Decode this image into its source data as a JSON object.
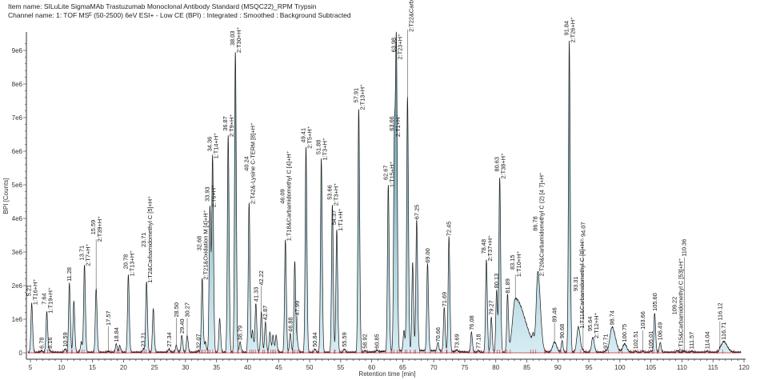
{
  "header": {
    "item_name": "Item name: SILuLite SigmaMAb Trastuzumab Monoclonal Antibody Standard (MSQC22)_RPM Trypsin",
    "channel_name": "Channel name: 1: TOF MSᴱ (50-2500) 6eV ESI+ - Low CE (BPI) : Integrated : Smoothed : Background Subtracted"
  },
  "colors": {
    "fill_top": "#2e7d8f",
    "fill_bottom": "#cfe9f2",
    "trace": "#1a1a1a",
    "baseline": "#c0282d"
  },
  "chart_data": {
    "type": "line",
    "xlabel": "Retention time [min]",
    "ylabel": "BPI [Counts]",
    "xlim": [
      4.5,
      120
    ],
    "ylim": [
      0,
      9500000
    ],
    "xticks": [
      "5",
      "10",
      "15",
      "20",
      "25",
      "30",
      "35",
      "40",
      "45",
      "50",
      "55",
      "60",
      "65",
      "70",
      "75",
      "80",
      "85",
      "90",
      "95",
      "100",
      "105",
      "110",
      "115",
      "120"
    ],
    "yticks": [
      "0",
      "1e6",
      "2e6",
      "3e6",
      "4e6",
      "5e6",
      "6e6",
      "7e6",
      "8e6",
      "9e6"
    ],
    "grid": false,
    "peaks": [
      {
        "rt": 5.21,
        "y": 1450000.0,
        "label": "5.21",
        "name": "1:T16+H⁺"
      },
      {
        "rt": 6.78,
        "y": 50000.0,
        "label": "6.78"
      },
      {
        "rt": 7.64,
        "y": 1200000.0,
        "label": "7.64",
        "name": "1:T19+H⁺"
      },
      {
        "rt": 8.16,
        "y": 50000.0,
        "label": "8.16"
      },
      {
        "rt": 10.59,
        "y": 100000.0,
        "label": "10.59"
      },
      {
        "rt": 11.28,
        "y": 2050000.0,
        "label": "11.28"
      },
      {
        "rt": 12.0,
        "y": 1530000.0
      },
      {
        "rt": 13.2,
        "y": 300000.0
      },
      {
        "rt": 13.71,
        "y": 2600000.0,
        "label": "13.71",
        "name": "2:T7+H⁺"
      },
      {
        "rt": 15.59,
        "y": 1900000.0,
        "label": "15.59",
        "name": "2:T39+H⁺"
      },
      {
        "rt": 17.57,
        "y": 30000.0,
        "label": "17.57"
      },
      {
        "rt": 18.84,
        "y": 250000.0,
        "label": "18.84"
      },
      {
        "rt": 19.4,
        "y": 200000.0
      },
      {
        "rt": 20.78,
        "y": 2300000.0,
        "label": "20.78",
        "name": "1:T13+H⁺"
      },
      {
        "rt": 23.21,
        "y": 100000.0,
        "label": "23.21"
      },
      {
        "rt": 23.71,
        "y": 2100000.0,
        "label": "23.71",
        "name": "1:T2&Carbamidomethyl C [5]+H⁺"
      },
      {
        "rt": 24.8,
        "y": 1300000.0
      },
      {
        "rt": 27.34,
        "y": 100000.0,
        "label": "27.34"
      },
      {
        "rt": 28.5,
        "y": 200000.0,
        "label": "28.50"
      },
      {
        "rt": 29.4,
        "y": 500000.0,
        "label": "29.40"
      },
      {
        "rt": 30.27,
        "y": 500000.0,
        "label": "30.27"
      },
      {
        "rt": 32.07,
        "y": 50000.0,
        "label": "32.07"
      },
      {
        "rt": 32.68,
        "y": 2200000.0,
        "label": "32.68",
        "name": "2:T21&Oxidation M [4]+H⁺"
      },
      {
        "rt": 33.2,
        "y": 300000.0
      },
      {
        "rt": 33.93,
        "y": 4350000.0,
        "label": "33.93",
        "name": "2:T6+H⁺"
      },
      {
        "rt": 34.36,
        "y": 5800000.0,
        "label": "34.36",
        "name": "1:T14+H⁺"
      },
      {
        "rt": 35.5,
        "y": 1000000.0
      },
      {
        "rt": 36.87,
        "y": 6450000.0,
        "label": "36.87",
        "name": "2:T9+H⁺"
      },
      {
        "rt": 38.03,
        "y": 8950000.0,
        "label": "38.03",
        "name": "2:T30+H⁺"
      },
      {
        "rt": 38.79,
        "y": 300000.0,
        "label": "38.79"
      },
      {
        "rt": 40.24,
        "y": 4450000.0,
        "label": "40.24",
        "name": "2:T42&-Lysine C-TERM [8]+H⁺"
      },
      {
        "rt": 40.8,
        "y": 650000.0
      },
      {
        "rt": 41.33,
        "y": 1450000.0,
        "label": "41.33"
      },
      {
        "rt": 42.22,
        "y": 1200000.0,
        "label": "42.22"
      },
      {
        "rt": 42.87,
        "y": 900000.0,
        "label": "42.87"
      },
      {
        "rt": 43.6,
        "y": 600000.0
      },
      {
        "rt": 44.1,
        "y": 500000.0
      },
      {
        "rt": 44.6,
        "y": 500000.0
      },
      {
        "rt": 46.09,
        "y": 3350000.0,
        "label": "46.09",
        "name": "1:T18&Carbamidomethyl C [4]+H⁺"
      },
      {
        "rt": 46.88,
        "y": 550000.0,
        "label": "46.88"
      },
      {
        "rt": 47.6,
        "y": 2700000.0
      },
      {
        "rt": 47.99,
        "y": 350000.0,
        "label": "47.99"
      },
      {
        "rt": 49.41,
        "y": 6100000.0,
        "label": "49.41",
        "name": "2:T5+H⁺"
      },
      {
        "rt": 50.84,
        "y": 100000.0,
        "label": "50.84"
      },
      {
        "rt": 51.88,
        "y": 5750000.0,
        "label": "51.88",
        "name": "1:T3+H⁺"
      },
      {
        "rt": 53.66,
        "y": 4400000.0,
        "label": "53.66",
        "name": "2:T3+H⁺"
      },
      {
        "rt": 54.37,
        "y": 3650000.0,
        "label": "54.37",
        "name": "1:T1+H⁺"
      },
      {
        "rt": 55.59,
        "y": 100000.0,
        "label": "55.59"
      },
      {
        "rt": 57.91,
        "y": 7250000.0,
        "label": "57.91",
        "name": "2:T13+H⁺"
      },
      {
        "rt": 58.92,
        "y": 50000.0,
        "label": "58.92"
      },
      {
        "rt": 60.85,
        "y": 50000.0,
        "label": "60.85"
      },
      {
        "rt": 62.67,
        "y": 4950000.0,
        "label": "62.67",
        "name": "1:T15+H⁺"
      },
      {
        "rt": 63.66,
        "y": 6450000.0,
        "label": "63.66",
        "name": "2:T1+H⁺"
      },
      {
        "rt": 63.98,
        "y": 8750000.0,
        "label": "63.98",
        "name": "2:T23+H⁺"
      },
      {
        "rt": 65.2,
        "y": 600000.0
      },
      {
        "rt": 65.77,
        "y": 7550000.0,
        "label": "65.77",
        "name": "2:T22&Carbamidomethyl C [6]+H⁺"
      },
      {
        "rt": 66.6,
        "y": 2600000.0
      },
      {
        "rt": 67.25,
        "y": 3900000.0,
        "label": "67.25"
      },
      {
        "rt": 69.0,
        "y": 2600000.0,
        "label": "69.00"
      },
      {
        "rt": 70.66,
        "y": 250000.0,
        "label": "70.66"
      },
      {
        "rt": 71.69,
        "y": 1300000.0,
        "label": "71.69"
      },
      {
        "rt": 72.45,
        "y": 3400000.0,
        "label": "72.45"
      },
      {
        "rt": 73.69,
        "y": 50000.0,
        "label": "73.69"
      },
      {
        "rt": 76.08,
        "y": 600000.0,
        "label": "76.08"
      },
      {
        "rt": 77.18,
        "y": 50000.0,
        "label": "77.18"
      },
      {
        "rt": 78.48,
        "y": 2750000.0,
        "label": "78.48",
        "name": "2:T37+H⁺"
      },
      {
        "rt": 79.27,
        "y": 1050000.0,
        "label": "79.27"
      },
      {
        "rt": 80.13,
        "y": 1850000.0,
        "label": "80.13"
      },
      {
        "rt": 80.63,
        "y": 5200000.0,
        "label": "80.63",
        "name": "2:T38+H⁺"
      },
      {
        "rt": 81.89,
        "y": 1700000.0,
        "label": "81.89"
      },
      {
        "rt": 83.15,
        "y": 1600000.0,
        "label": "83.15",
        "name": "1:T10+H⁺",
        "w": 0.45,
        "tail": 3.5
      },
      {
        "rt": 86.0,
        "y": 250000.0
      },
      {
        "rt": 86.78,
        "y": 2300000.0,
        "label": "86.78",
        "name": "2:T20&Carbamidomethyl C (2) [4 7]+H⁺",
        "w": 0.25,
        "tail": 1.6
      },
      {
        "rt": 89.46,
        "y": 300000.0,
        "label": "89.46",
        "w": 0.3
      },
      {
        "rt": 90.68,
        "y": 350000.0,
        "label": "90.68"
      },
      {
        "rt": 91.84,
        "y": 9250000.0,
        "label": "91.84",
        "name": "2:T26+H⁺"
      },
      {
        "rt": 93.31,
        "y": 750000.0,
        "label": "93.31",
        "name": "1:T11&Carbamidomethyl C [8]+H⁺",
        "w": 0.25
      },
      {
        "rt": 94.07,
        "y": 50000.0,
        "label": "94.07"
      },
      {
        "rt": 95.64,
        "y": 450000.0,
        "label": "95.64",
        "name": "2:T12+H⁺",
        "w": 0.2
      },
      {
        "rt": 97.71,
        "y": 50000.0,
        "label": "97.71"
      },
      {
        "rt": 98.74,
        "y": 750000.0,
        "label": "98.74",
        "w": 0.35,
        "tail": 1.5
      },
      {
        "rt": 100.75,
        "y": 250000.0,
        "label": "100.75",
        "w": 0.3
      },
      {
        "rt": 102.51,
        "y": 40000.0,
        "label": "102.51"
      },
      {
        "rt": 103.66,
        "y": 40000.0,
        "label": "103.66"
      },
      {
        "rt": 105.01,
        "y": 40000.0,
        "label": "105.01"
      },
      {
        "rt": 105.6,
        "y": 1170000.0,
        "label": "105.60"
      },
      {
        "rt": 106.49,
        "y": 300000.0,
        "label": "106.49"
      },
      {
        "rt": 109.22,
        "y": 50000.0,
        "label": "109.22",
        "name": "2:T15&Carbamidomethyl C [53]+H⁺"
      },
      {
        "rt": 110.36,
        "y": 40000.0,
        "label": "110.36"
      },
      {
        "rt": 111.57,
        "y": 40000.0,
        "label": "111.57"
      },
      {
        "rt": 114.04,
        "y": 40000.0,
        "label": "114.04"
      },
      {
        "rt": 116.12,
        "y": 80000.0,
        "label": "116.12"
      },
      {
        "rt": 116.71,
        "y": 320000.0,
        "label": "116.71",
        "w": 0.35,
        "tail": 1.6
      }
    ]
  }
}
